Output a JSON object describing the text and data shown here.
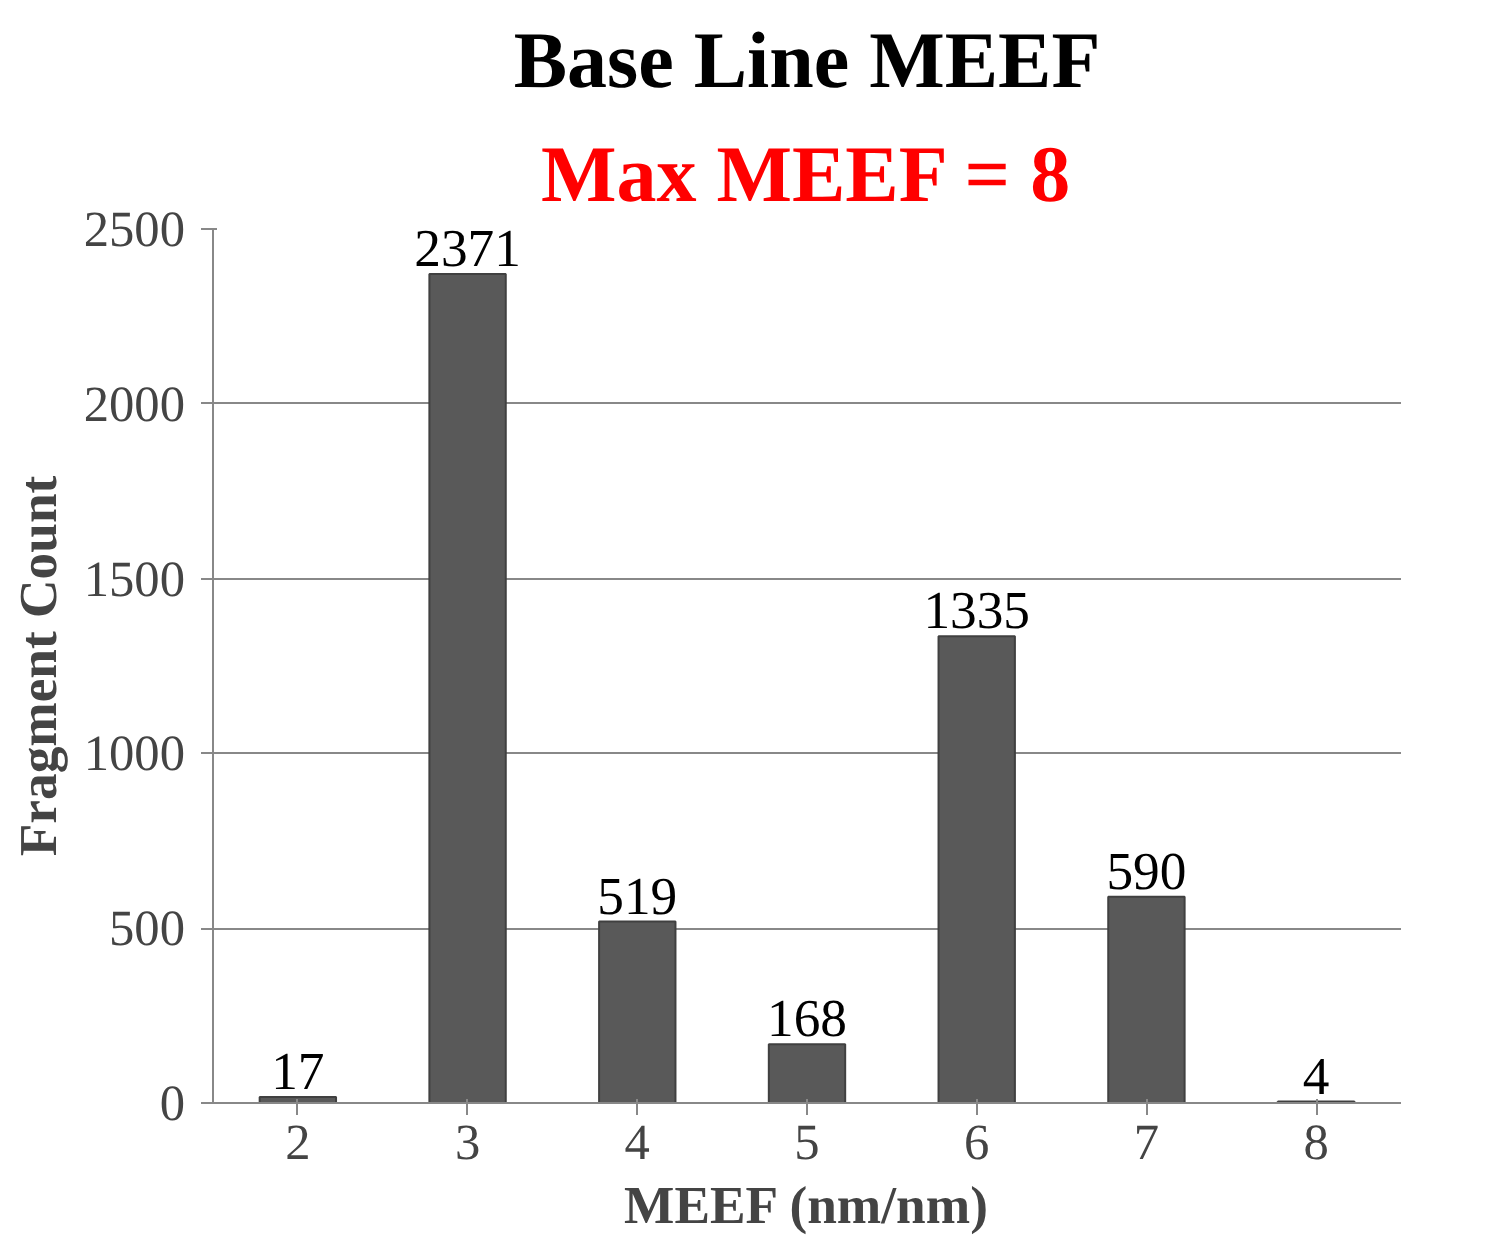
{
  "chart_data": {
    "type": "bar",
    "title": "Base Line MEEF",
    "subtitle": "Max MEEF = 8",
    "xlabel": "MEEF (nm/nm)",
    "ylabel": "Fragment Count",
    "categories": [
      "2",
      "3",
      "4",
      "5",
      "6",
      "7",
      "8"
    ],
    "values": [
      17,
      2371,
      519,
      168,
      1335,
      590,
      4
    ],
    "color": "#595959",
    "ylim": [
      0,
      2500
    ],
    "yticks": [
      0,
      500,
      1000,
      1500,
      2000,
      2500
    ],
    "grid": "y",
    "data_labels": true
  }
}
